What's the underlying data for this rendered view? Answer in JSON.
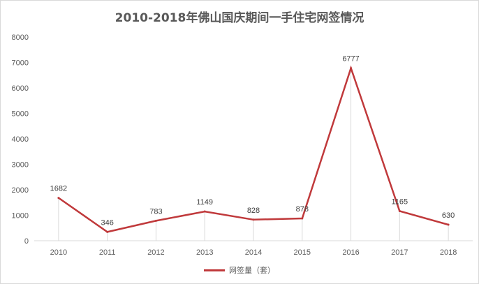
{
  "chart_data": {
    "type": "line",
    "title": "2010-2018年佛山国庆期间一手住宅网签情况",
    "categories": [
      "2010",
      "2011",
      "2012",
      "2013",
      "2014",
      "2015",
      "2016",
      "2017",
      "2018"
    ],
    "series": [
      {
        "name": "网签量（套）",
        "values": [
          1682,
          346,
          783,
          1149,
          828,
          878,
          6777,
          1165,
          630
        ],
        "color": "#c0393b"
      }
    ],
    "ylim": [
      0,
      8000
    ],
    "yticks": [
      "0",
      "1000",
      "2000",
      "3000",
      "4000",
      "5000",
      "6000",
      "7000",
      "8000"
    ],
    "grid": "vertical drop lines at each category",
    "legend": "bottom",
    "data_labels": true
  }
}
